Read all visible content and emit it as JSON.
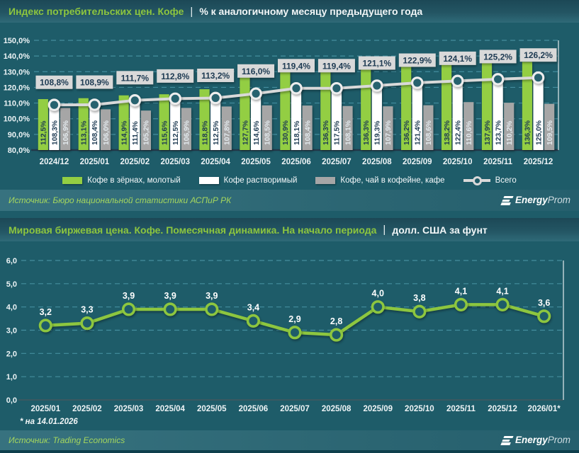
{
  "header1": {
    "title": "Индекс потребительских цен. Кофе",
    "separator": "|",
    "subtitle": "% к аналогичному месяцу предыдущего года"
  },
  "header2": {
    "title": "Мировая биржевая цена. Кофе. Помесячная динамика. На начало периода",
    "separator": "|",
    "subtitle": "долл. США за фунт"
  },
  "source1": {
    "label": "Источник: Бюро национальной статистики АСПиР РК"
  },
  "source2": {
    "label": "Источник: Trading Economics"
  },
  "footnote": "* на 14.01.2026",
  "logo": {
    "part1": "Energy",
    "part2": "Prom"
  },
  "colors": {
    "background": "#1e5c69",
    "accent_green": "#8dc63f",
    "bar_green": "#93ce43",
    "bar_white": "#ffffff",
    "bar_gray": "#a6a6a6",
    "total_line": "#d9d9d9",
    "grid_dash": "#4b97a8",
    "dark_label": "#1d3a52"
  },
  "chart_data": [
    {
      "type": "bar",
      "title": "Индекс потребительских цен. Кофе",
      "subtitle": "% к аналогичному месяцу предыдущего года",
      "categories": [
        "2024/12",
        "2025/01",
        "2025/02",
        "2025/03",
        "2025/04",
        "2025/05",
        "2025/06",
        "2025/07",
        "2025/08",
        "2025/09",
        "2025/10",
        "2025/11",
        "2025/12"
      ],
      "series": [
        {
          "name": "Кофе в зёрнах, молотый",
          "kind": "bar",
          "color": "#93ce43",
          "label_color": "#1d3a52",
          "values": [
            112.5,
            113.1,
            114.9,
            115.6,
            118.8,
            127.7,
            130.9,
            136.3,
            136.3,
            136.2,
            138.2,
            137.9,
            136.3
          ]
        },
        {
          "name": "Кофе растворимый",
          "kind": "bar",
          "color": "#ffffff",
          "label_color": "#1d3a52",
          "values": [
            108.3,
            108.4,
            111.4,
            112.5,
            112.5,
            114.6,
            118.1,
            117.5,
            119.3,
            121.4,
            122.4,
            123.7,
            125.0
          ]
        },
        {
          "name": "Кофе, чай в кофейне, кафе",
          "kind": "bar",
          "color": "#a6a6a6",
          "label_color": "#e3eaee",
          "values": [
            106.9,
            106.0,
            105.2,
            106.9,
            107.8,
            108.5,
            108.4,
            108.1,
            107.9,
            108.6,
            110.6,
            110.2,
            109.5
          ]
        },
        {
          "name": "Всего",
          "kind": "line",
          "color": "#d9d9d9",
          "label_box_fill": "#d9d9d9",
          "label_color": "#1d3a52",
          "values": [
            108.8,
            108.9,
            111.7,
            112.8,
            113.2,
            116.0,
            119.4,
            119.4,
            121.1,
            122.9,
            124.1,
            125.2,
            126.2
          ]
        }
      ],
      "ylim": [
        80,
        150
      ],
      "ytick_step": 10,
      "yformat": "percent",
      "grid": "dashed-horizontal",
      "legend_position": "bottom"
    },
    {
      "type": "line",
      "title": "Мировая биржевая цена. Кофе. Помесячная динамика. На начало периода",
      "unit": "долл. США за фунт",
      "categories": [
        "2025/01",
        "2025/02",
        "2025/03",
        "2025/04",
        "2025/05",
        "2025/06",
        "2025/07",
        "2025/08",
        "2025/09",
        "2025/10",
        "2025/11",
        "2025/12",
        "2026/01*"
      ],
      "values": [
        3.2,
        3.3,
        3.9,
        3.9,
        3.9,
        3.4,
        2.9,
        2.8,
        4.0,
        3.8,
        4.1,
        4.1,
        3.6
      ],
      "color": "#8dc63f",
      "ylim": [
        0,
        6
      ],
      "ytick_step": 1,
      "grid": "dashed-horizontal",
      "footnote": "* на 14.01.2026"
    }
  ]
}
